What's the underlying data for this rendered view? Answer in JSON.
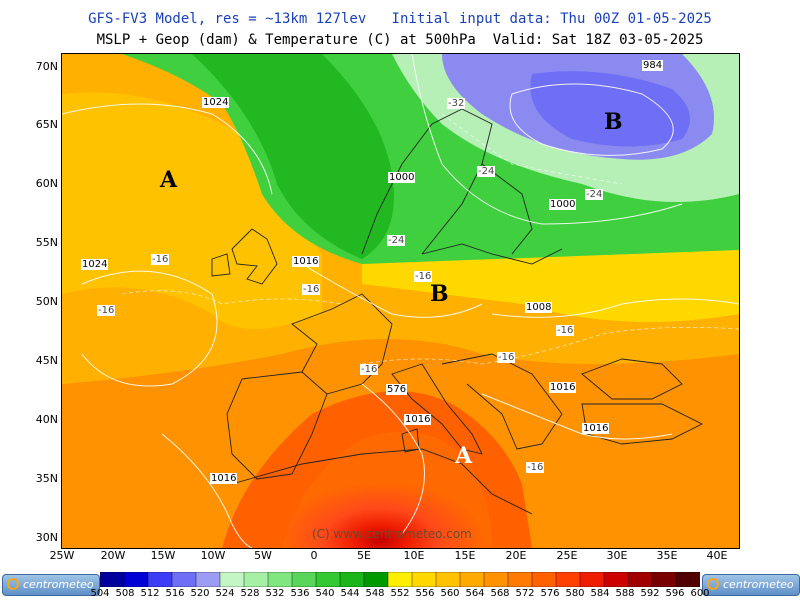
{
  "title": {
    "line1": "GFS-FV3 Model, res = ~13km 127lev   Initial input data: Thu 00Z 01-05-2025",
    "line2": "MSLP + Geop (dam) & Temperature (C) at 500hPa  Valid: Sat 18Z 03-05-2025"
  },
  "axes": {
    "lat_labels": [
      "70N",
      "65N",
      "60N",
      "55N",
      "50N",
      "45N",
      "40N",
      "35N",
      "30N"
    ],
    "lon_labels": [
      "25W",
      "20W",
      "15W",
      "10W",
      "5W",
      "0",
      "5E",
      "10E",
      "15E",
      "20E",
      "25E",
      "30E",
      "35E",
      "40E"
    ]
  },
  "pressure_centers": [
    {
      "name": "high-azores",
      "text": "A",
      "color": "#1a1a80"
    },
    {
      "name": "high-mediterranean",
      "text": "A",
      "color": "#ffffff"
    },
    {
      "name": "low-central-europe",
      "text": "B",
      "color": "#1a1a80"
    },
    {
      "name": "low-scandinavia",
      "text": "B",
      "color": "#1a1a80"
    }
  ],
  "isobar_labels": [
    "984",
    "1024",
    "1000",
    "1000",
    "1024",
    "1016",
    "1008",
    "1016",
    "1016",
    "1016",
    "1016"
  ],
  "temperature_labels": [
    "-32",
    "-24",
    "-24",
    "-24",
    "-16",
    "-16",
    "-16",
    "-16",
    "-16",
    "-16",
    "-16",
    "-16"
  ],
  "geopotential_labels": [
    "576"
  ],
  "watermark": "(C) www.centrometeo.com",
  "legend": {
    "values": [
      "504",
      "508",
      "512",
      "516",
      "520",
      "524",
      "528",
      "532",
      "536",
      "540",
      "544",
      "548",
      "552",
      "556",
      "560",
      "564",
      "568",
      "572",
      "576",
      "580",
      "584",
      "588",
      "592",
      "596",
      "600"
    ],
    "colors": [
      "#00009a",
      "#0000d4",
      "#3d3df5",
      "#6f6ff5",
      "#9c9cf5",
      "#c4f5c4",
      "#a6f0a6",
      "#80e680",
      "#59d659",
      "#33c933",
      "#1ab51a",
      "#009900",
      "#ffee00",
      "#ffd800",
      "#ffc200",
      "#ffaa00",
      "#ff9200",
      "#ff7a00",
      "#ff6000",
      "#ff4000",
      "#ee1c00",
      "#cc0000",
      "#a00000",
      "#780000",
      "#500000"
    ]
  },
  "logo_text": "centrometeo",
  "colors": {
    "green": "#3fcf3f",
    "light_green": "#b6f0b6",
    "lavender": "#8a8af0",
    "yellow": "#ffd800",
    "orange": "#ffa000",
    "red": "#ff4a1a"
  }
}
